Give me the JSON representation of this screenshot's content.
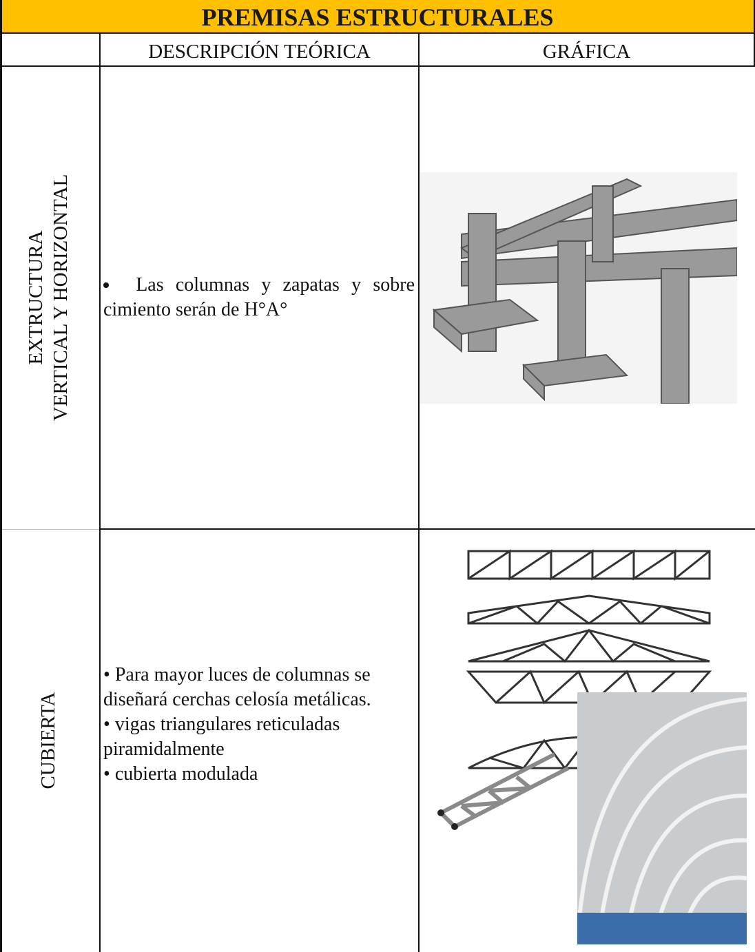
{
  "header": {
    "title": "PREMISAS ESTRUCTURALES"
  },
  "table": {
    "columns": [
      "DESCRIPCIÓN TEÓRICA",
      "GRÁFICA"
    ],
    "rows": [
      {
        "label": [
          "EXTRUCTURA",
          "VERTICAL Y HORIZONTAL"
        ],
        "description": [
          "Las columnas y zapatas y sobre cimiento serán de H°A°"
        ]
      },
      {
        "label": [
          "CUBIERTA"
        ],
        "description": [
          "Para mayor luces de columnas se diseñará cerchas celosía metálicas.",
          "vigas triangulares reticuladas piramidalmente",
          "cubierta modulada"
        ]
      }
    ]
  }
}
